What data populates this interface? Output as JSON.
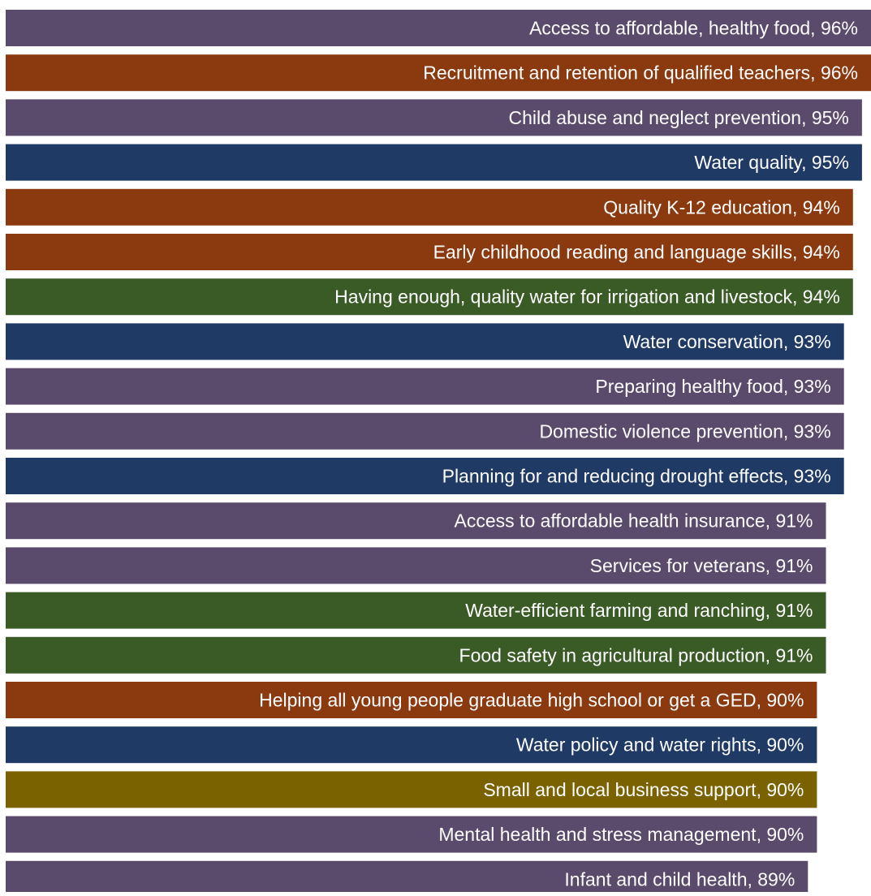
{
  "chart_data": {
    "type": "bar",
    "orientation": "horizontal",
    "title": "",
    "xlabel": "",
    "ylabel": "",
    "xlim": [
      0,
      96
    ],
    "grid": false,
    "legend": "none",
    "label_format": "{category}, {value}%",
    "colors": {
      "health_family": "#5a4a6b",
      "education": "#8b3a0f",
      "water": "#1f3a64",
      "agriculture": "#3a5a26",
      "business": "#7a6200"
    },
    "categories": [
      "Access to affordable, healthy food",
      "Recruitment and retention of qualified teachers",
      "Child abuse and neglect prevention",
      "Water quality",
      "Quality K-12 education",
      "Early childhood reading and language skills",
      "Having enough, quality water for irrigation and livestock",
      "Water conservation",
      "Preparing healthy food",
      "Domestic violence prevention",
      "Planning for and reducing drought effects",
      "Access to affordable health insurance",
      "Services for veterans",
      "Water-efficient farming and ranching",
      "Food safety in agricultural production",
      "Helping all young people graduate high school or get a GED",
      "Water policy and water rights",
      "Small and local business support",
      "Mental health and stress management",
      "Infant and child health"
    ],
    "values": [
      96,
      96,
      95,
      95,
      94,
      94,
      94,
      93,
      93,
      93,
      93,
      91,
      91,
      91,
      91,
      90,
      90,
      90,
      90,
      89
    ],
    "bar_groups": [
      "health_family",
      "education",
      "health_family",
      "water",
      "education",
      "education",
      "agriculture",
      "water",
      "health_family",
      "health_family",
      "water",
      "health_family",
      "health_family",
      "agriculture",
      "agriculture",
      "education",
      "water",
      "business",
      "health_family",
      "health_family"
    ],
    "label_color": "#ffffff"
  }
}
